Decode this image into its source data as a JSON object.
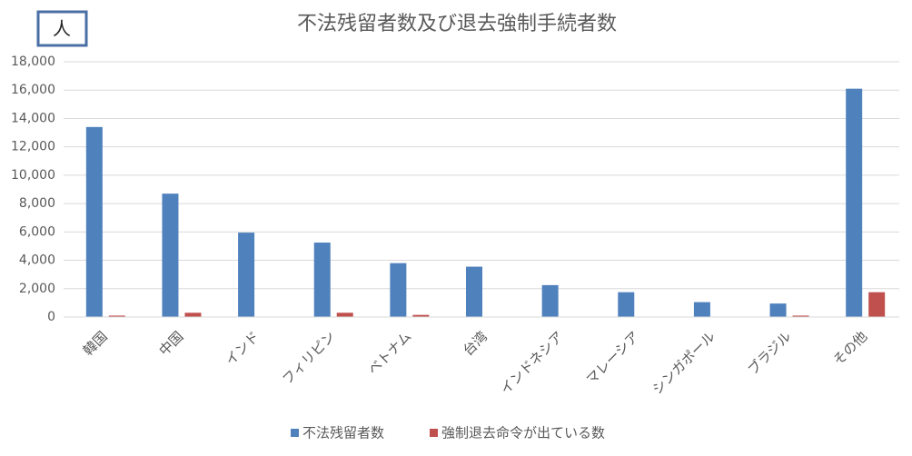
{
  "chart_data": {
    "type": "bar",
    "title": "不法残留者数及び退去強制手続者数",
    "y_axis_label": "人",
    "categories": [
      "韓国",
      "中国",
      "インド",
      "フィリピン",
      "ベトナム",
      "台湾",
      "インドネシア",
      "マレーシア",
      "シンガポール",
      "ブラジル",
      "その他"
    ],
    "series": [
      {
        "name": "不法残留者数",
        "color": "#4f81bd",
        "values": [
          13400,
          8700,
          5950,
          5250,
          3800,
          3550,
          2250,
          1750,
          1050,
          950,
          16100
        ]
      },
      {
        "name": "強制退去命令が出ている数",
        "color": "#c0504d",
        "values": [
          100,
          300,
          0,
          300,
          150,
          0,
          0,
          0,
          0,
          100,
          1750
        ]
      }
    ],
    "ylim": [
      0,
      18000
    ],
    "yticks": [
      0,
      {
        "value": 2000,
        "label": "2,000"
      },
      {
        "value": 4000,
        "label": "4,000"
      },
      {
        "value": 6000,
        "label": "6,000"
      },
      {
        "value": 8000,
        "label": "8,000"
      },
      {
        "value": 10000,
        "label": "10,000"
      },
      {
        "value": 12000,
        "label": "12,000"
      },
      {
        "value": 14000,
        "label": "14,000"
      },
      {
        "value": 16000,
        "label": "16,000"
      },
      {
        "value": 18000,
        "label": "18,000"
      }
    ],
    "grid": true,
    "legend": "bottom"
  }
}
